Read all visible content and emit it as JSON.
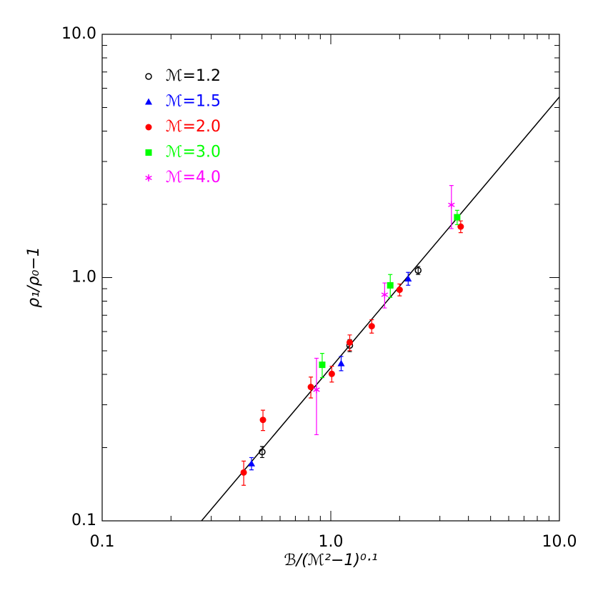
{
  "chart_data": {
    "type": "scatter",
    "xlog": true,
    "ylog": true,
    "xlabel": "ℬ/(ℳ²−1)⁰·¹",
    "ylabel": "ρ₁/ρ₀−1",
    "xlim": [
      0.1,
      10
    ],
    "ylim": [
      0.1,
      10
    ],
    "xticks": [
      0.1,
      {
        "value": 1,
        "label": "1.0"
      },
      {
        "value": 10,
        "label": "10.0"
      }
    ],
    "yticks": [
      0.1,
      {
        "value": 1,
        "label": "1.0"
      },
      {
        "value": 10,
        "label": "10.0"
      }
    ],
    "xminorticks": [
      0.2,
      0.3,
      0.4,
      0.5,
      0.6,
      0.7,
      0.8,
      0.9,
      2,
      3,
      4,
      5,
      6,
      7,
      8,
      9
    ],
    "yminorticks": [
      0.2,
      0.3,
      0.4,
      0.5,
      0.6,
      0.7,
      0.8,
      0.9,
      2,
      3,
      4,
      5,
      6,
      7,
      8,
      9
    ],
    "legend": "upper left",
    "series": [
      {
        "name": "ℳ=1.2",
        "color": "#000000",
        "marker": "circle-open",
        "x": [
          0.501,
          1.21,
          2.41
        ],
        "values": [
          0.192,
          0.526,
          1.07
        ],
        "errors": [
          0.01,
          0.03,
          0.04
        ]
      },
      {
        "name": "ℳ=1.5",
        "color": "#0000ff",
        "marker": "triangle",
        "x": [
          0.45,
          1.11,
          2.18
        ],
        "values": [
          0.172,
          0.444,
          0.99
        ],
        "errors": [
          0.01,
          0.03,
          0.06
        ]
      },
      {
        "name": "ℳ=2.0",
        "color": "#ff0000",
        "marker": "circle",
        "x": [
          0.416,
          0.505,
          0.818,
          1.01,
          1.21,
          1.51,
          2.0,
          3.7
        ],
        "values": [
          0.158,
          0.26,
          0.355,
          0.402,
          0.541,
          0.631,
          0.891,
          1.62
        ],
        "errors": [
          0.018,
          0.025,
          0.035,
          0.03,
          0.04,
          0.04,
          0.05,
          0.09
        ]
      },
      {
        "name": "ℳ=3.0",
        "color": "#00ff00",
        "marker": "square",
        "x": [
          0.917,
          1.82,
          3.57
        ],
        "values": [
          0.438,
          0.929,
          1.77
        ],
        "errors": [
          0.05,
          0.1,
          0.12
        ]
      },
      {
        "name": "ℳ=4.0",
        "color": "#ff00ff",
        "marker": "asterisk",
        "x": [
          0.866,
          1.72,
          3.37
        ],
        "values": [
          0.346,
          0.85,
          1.99
        ],
        "errors": [
          0.12,
          0.1,
          0.4
        ]
      }
    ],
    "fit": {
      "color": "#000000",
      "x": [
        0.272,
        10
      ],
      "values": [
        0.1,
        5.53
      ]
    }
  }
}
